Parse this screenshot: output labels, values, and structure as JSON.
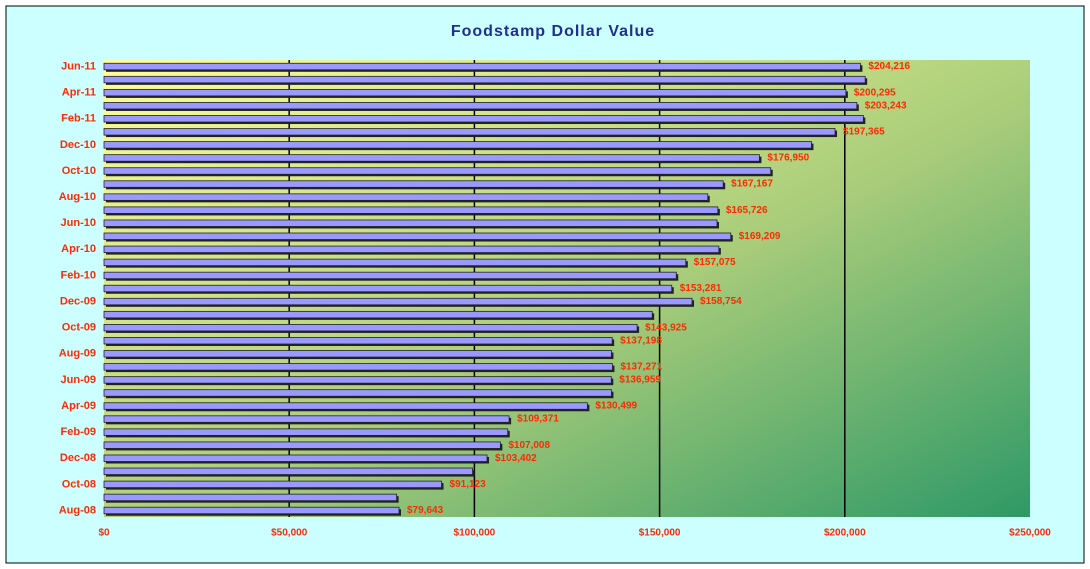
{
  "chart_data": {
    "type": "bar",
    "orientation": "horizontal",
    "title": "Foodstamp Dollar Value",
    "categories": [
      "Aug-08",
      null,
      "Oct-08",
      null,
      "Dec-08",
      null,
      "Feb-09",
      null,
      "Apr-09",
      null,
      "Jun-09",
      null,
      "Aug-09",
      null,
      "Oct-09",
      null,
      "Dec-09",
      null,
      "Feb-10",
      null,
      "Apr-10",
      null,
      "Jun-10",
      null,
      "Aug-10",
      null,
      "Oct-10",
      null,
      "Dec-10",
      null,
      "Feb-11",
      null,
      "Apr-11",
      null,
      "Jun-11"
    ],
    "values": [
      79643,
      79000,
      91123,
      99500,
      103402,
      107008,
      109000,
      109371,
      130499,
      137000,
      136959,
      137271,
      137000,
      137198,
      143925,
      148000,
      158754,
      153281,
      154500,
      157075,
      166000,
      169209,
      165500,
      165726,
      163000,
      167167,
      180000,
      176950,
      191000,
      197365,
      205000,
      203243,
      200295,
      205500,
      204216
    ],
    "value_labels": [
      "$79,643",
      null,
      "$91,123",
      null,
      "$103,402",
      "$107,008",
      null,
      "$109,371",
      "$130,499",
      null,
      "$136,959",
      "$137,271",
      null,
      "$137,198",
      "$143,925",
      null,
      "$158,754",
      "$153,281",
      null,
      "$157,075",
      null,
      "$169,209",
      null,
      "$165,726",
      null,
      "$167,167",
      null,
      "$176,950",
      null,
      "$197,365",
      null,
      "$203,243",
      "$200,295",
      null,
      "$204,216"
    ],
    "color": "#9999ff",
    "xlim": [
      0,
      250000
    ],
    "xticks": [
      {
        "value": 0,
        "label": "$0"
      },
      {
        "value": 50000,
        "label": "$50,000"
      },
      {
        "value": 100000,
        "label": "$100,000"
      },
      {
        "value": 150000,
        "label": "$150,000"
      },
      {
        "value": 200000,
        "label": "$200,000"
      },
      {
        "value": 250000,
        "label": "$250,000"
      }
    ],
    "grid": true
  }
}
